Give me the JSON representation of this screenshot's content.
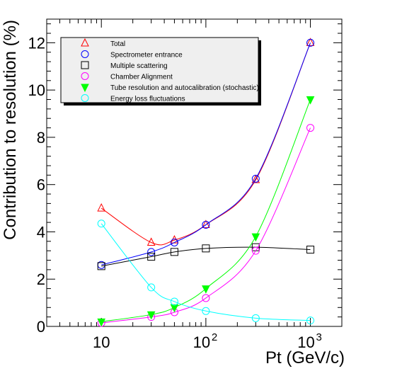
{
  "chart_data": {
    "type": "scatter",
    "title": "",
    "xlabel": "Pt (GeV/c)",
    "ylabel": "Contribution to resolution (%)",
    "xscale": "log",
    "xlim": [
      3,
      2000
    ],
    "ylim": [
      0,
      13
    ],
    "x_ticks": [
      {
        "value": 10,
        "base": "10",
        "exp": ""
      },
      {
        "value": 100,
        "base": "10",
        "exp": "2"
      },
      {
        "value": 1000,
        "base": "10",
        "exp": "3"
      }
    ],
    "y_ticks": [
      "0",
      "2",
      "4",
      "6",
      "8",
      "10",
      "12"
    ],
    "grid": false,
    "legend_position": "top-left",
    "series": [
      {
        "name": "Total",
        "color": "#ff0000",
        "marker": "triangle-open",
        "x": [
          10,
          30,
          50,
          100,
          300,
          1000
        ],
        "y": [
          5.0,
          3.55,
          3.65,
          4.3,
          6.2,
          12.0
        ]
      },
      {
        "name": "Spectrometer entrance",
        "color": "#0000ff",
        "marker": "circle-open",
        "x": [
          10,
          30,
          50,
          100,
          300,
          1000
        ],
        "y": [
          2.6,
          3.15,
          3.55,
          4.3,
          6.25,
          12.0
        ]
      },
      {
        "name": "Multiple scattering",
        "color": "#000000",
        "marker": "square-open",
        "x": [
          10,
          30,
          50,
          100,
          300,
          1000
        ],
        "y": [
          2.55,
          2.95,
          3.15,
          3.3,
          3.35,
          3.25
        ]
      },
      {
        "name": "Chamber Alignment",
        "color": "#ff00ff",
        "marker": "circle-open",
        "x": [
          10,
          30,
          50,
          100,
          300,
          1000
        ],
        "y": [
          0.15,
          0.4,
          0.6,
          1.2,
          3.2,
          8.4
        ]
      },
      {
        "name": "Tube resolution and autocalibration (stochastic)",
        "color": "#00ff00",
        "marker": "triangle-down-filled",
        "x": [
          10,
          30,
          50,
          100,
          300,
          1000
        ],
        "y": [
          0.2,
          0.5,
          0.8,
          1.6,
          3.8,
          9.6
        ]
      },
      {
        "name": "Energy loss fluctuations",
        "color": "#00ffff",
        "marker": "circle-open",
        "x": [
          10,
          30,
          50,
          100,
          300,
          1000
        ],
        "y": [
          4.35,
          1.65,
          1.05,
          0.65,
          0.35,
          0.25
        ]
      }
    ]
  }
}
